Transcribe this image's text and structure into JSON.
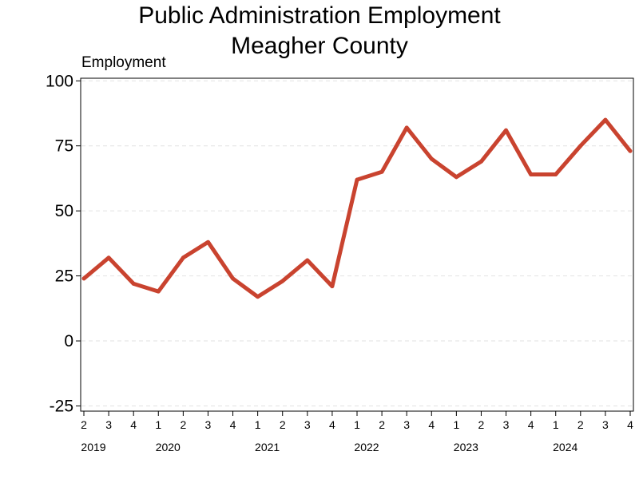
{
  "chart_data": {
    "type": "line",
    "title": [
      "Public Administration Employment",
      "Meagher County"
    ],
    "ylabel": "Employment",
    "xlabel": "",
    "ylim": [
      -27,
      101
    ],
    "yticks": [
      -25,
      0,
      25,
      50,
      75,
      100
    ],
    "grid": true,
    "x_quarters": [
      "2",
      "3",
      "4",
      "1",
      "2",
      "3",
      "4",
      "1",
      "2",
      "3",
      "4",
      "1",
      "2",
      "3",
      "4",
      "1",
      "2",
      "3",
      "4",
      "1",
      "2",
      "3",
      "4"
    ],
    "years": [
      {
        "label": "2019",
        "at_index": 0
      },
      {
        "label": "2020",
        "at_index": 3
      },
      {
        "label": "2021",
        "at_index": 7
      },
      {
        "label": "2022",
        "at_index": 11
      },
      {
        "label": "2023",
        "at_index": 15
      },
      {
        "label": "2024",
        "at_index": 19
      }
    ],
    "series": [
      {
        "name": "Employment",
        "color": "#c9432f",
        "values": [
          24,
          32,
          22,
          19,
          32,
          38,
          24,
          17,
          23,
          31,
          21,
          62,
          65,
          82,
          70,
          63,
          69,
          81,
          64,
          64,
          75,
          85,
          73
        ]
      }
    ]
  }
}
